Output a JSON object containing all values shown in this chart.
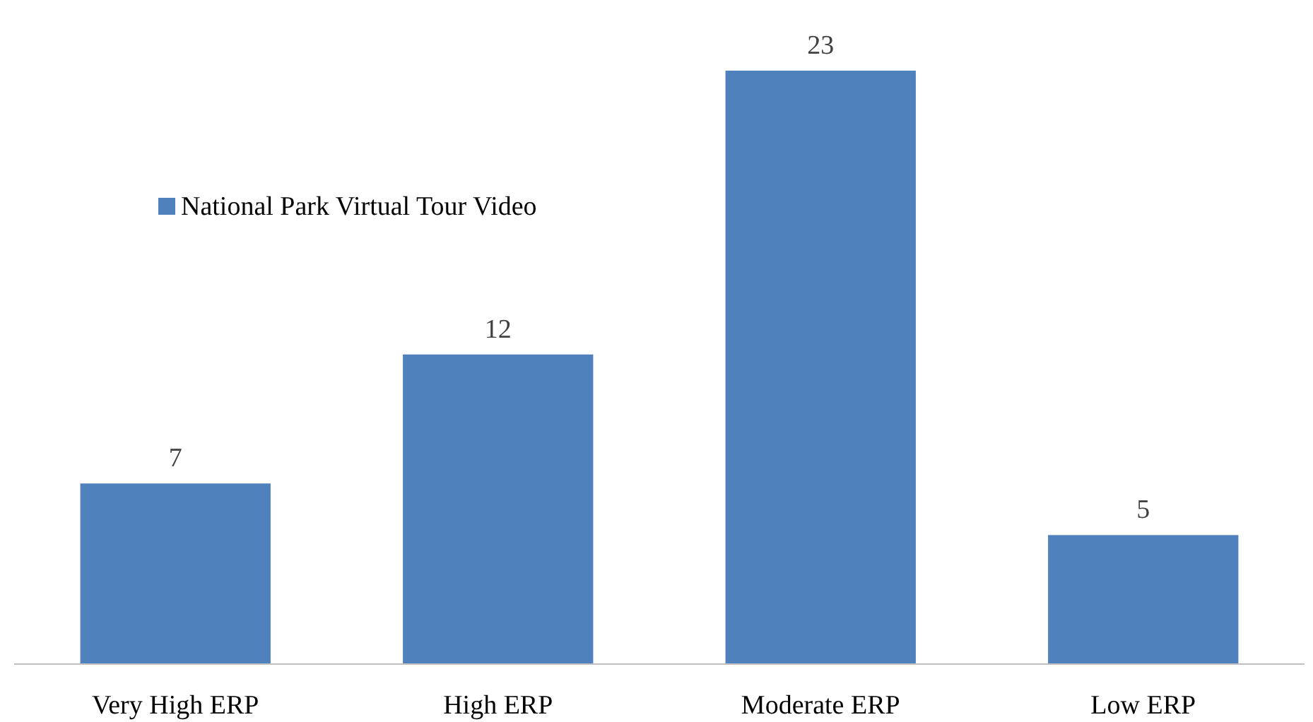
{
  "chart_data": {
    "type": "bar",
    "categories": [
      "Very High ERP",
      "High ERP",
      "Moderate ERP",
      "Low ERP"
    ],
    "series": [
      {
        "name": "National Park Virtual Tour Video",
        "color": "#4f81bd",
        "values": [
          7,
          12,
          23,
          5
        ]
      }
    ],
    "tick_labels": "x",
    "data_labels": true,
    "legend": "top left"
  }
}
